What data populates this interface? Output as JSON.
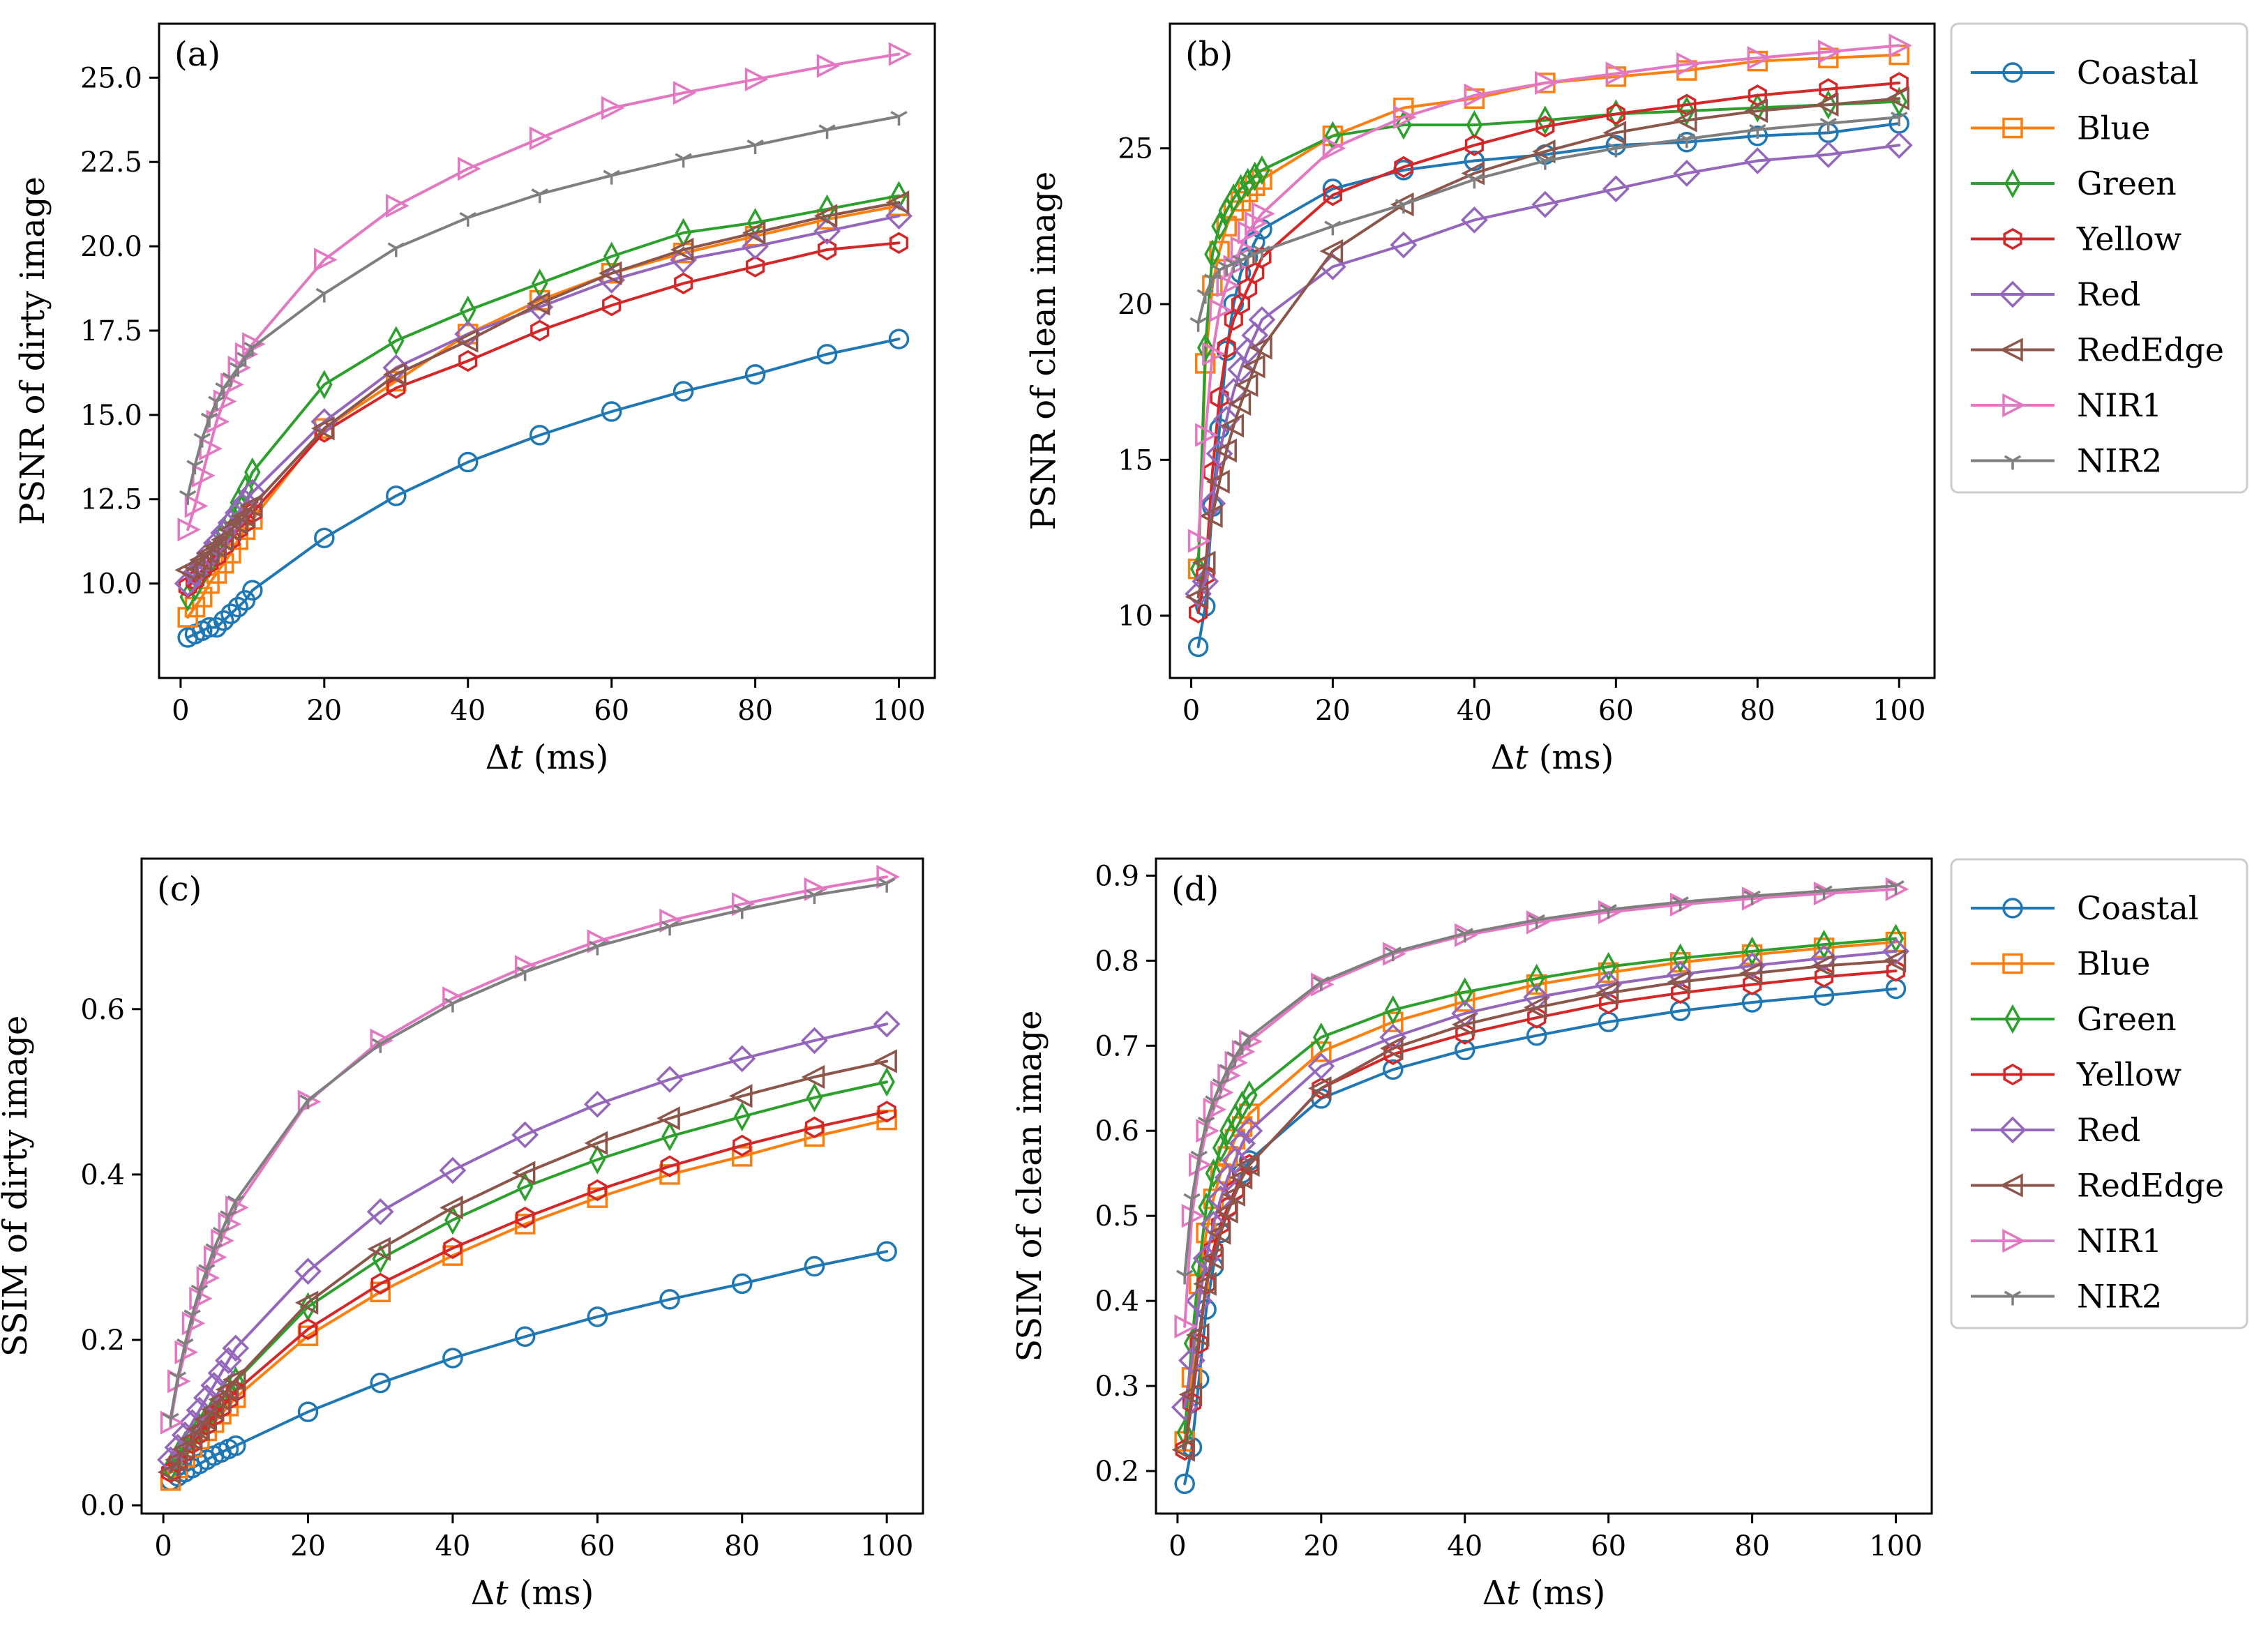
{
  "chart_data": [
    {
      "id": "a",
      "type": "line",
      "panel_label": "(a)",
      "xlabel": "Δt (ms)",
      "ylabel": "PSNR of dirty image",
      "xlim": [
        -3,
        105
      ],
      "ylim": [
        7.2,
        26.6
      ],
      "xticks": [
        0,
        20,
        40,
        60,
        80,
        100
      ],
      "xtick_labels": [
        "0",
        "20",
        "40",
        "60",
        "80",
        "100"
      ],
      "yticks": [
        10,
        12.5,
        15,
        17.5,
        20,
        22.5,
        25
      ],
      "ytick_labels": [
        "10.0",
        "12.5",
        "15.0",
        "17.5",
        "20.0",
        "22.5",
        "25.0"
      ],
      "x": [
        1,
        2,
        3,
        4,
        5,
        6,
        7,
        8,
        9,
        10,
        20,
        30,
        40,
        50,
        60,
        70,
        80,
        90,
        100
      ],
      "series": [
        {
          "name": "Coastal",
          "values": [
            8.4,
            8.5,
            8.6,
            8.7,
            8.7,
            8.9,
            9.1,
            9.3,
            9.5,
            9.8,
            11.35,
            12.6,
            13.6,
            14.4,
            15.1,
            15.7,
            16.2,
            16.8,
            17.25
          ]
        },
        {
          "name": "Blue",
          "values": [
            9.0,
            9.3,
            9.6,
            10.0,
            10.3,
            10.6,
            10.9,
            11.3,
            11.6,
            11.9,
            14.6,
            16.0,
            17.4,
            18.4,
            19.2,
            19.8,
            20.3,
            20.8,
            21.2
          ]
        },
        {
          "name": "Green",
          "values": [
            9.6,
            9.9,
            10.3,
            10.6,
            11.0,
            11.5,
            11.9,
            12.4,
            12.8,
            13.3,
            15.9,
            17.2,
            18.1,
            18.9,
            19.7,
            20.4,
            20.7,
            21.1,
            21.5
          ]
        },
        {
          "name": "Yellow",
          "values": [
            9.9,
            10.1,
            10.4,
            10.6,
            10.8,
            11.1,
            11.3,
            11.6,
            11.8,
            12.1,
            14.5,
            15.8,
            16.6,
            17.5,
            18.25,
            18.9,
            19.4,
            19.9,
            20.1
          ]
        },
        {
          "name": "Red",
          "values": [
            10.0,
            10.3,
            10.6,
            10.9,
            11.2,
            11.5,
            11.8,
            12.1,
            12.4,
            12.7,
            14.8,
            16.4,
            17.4,
            18.2,
            19.0,
            19.6,
            20.0,
            20.45,
            20.9
          ]
        },
        {
          "name": "RedEdge",
          "values": [
            10.4,
            10.5,
            10.7,
            10.9,
            11.1,
            11.3,
            11.6,
            11.8,
            12.0,
            12.3,
            14.6,
            16.2,
            17.2,
            18.3,
            19.2,
            19.9,
            20.4,
            20.9,
            21.3
          ]
        },
        {
          "name": "NIR1",
          "values": [
            11.6,
            12.3,
            13.2,
            14.0,
            14.8,
            15.4,
            15.9,
            16.4,
            16.8,
            17.1,
            19.6,
            21.2,
            22.3,
            23.2,
            24.1,
            24.55,
            24.95,
            25.35,
            25.7
          ]
        },
        {
          "name": "NIR2",
          "values": [
            12.6,
            13.5,
            14.3,
            14.9,
            15.4,
            15.8,
            16.1,
            16.4,
            16.7,
            17.0,
            18.6,
            19.95,
            20.85,
            21.55,
            22.1,
            22.6,
            23.0,
            23.45,
            23.85
          ]
        }
      ]
    },
    {
      "id": "b",
      "type": "line",
      "panel_label": "(b)",
      "xlabel": "Δt (ms)",
      "ylabel": "PSNR of clean image",
      "xlim": [
        -3,
        105
      ],
      "ylim": [
        8.0,
        29.0
      ],
      "xticks": [
        0,
        20,
        40,
        60,
        80,
        100
      ],
      "xtick_labels": [
        "0",
        "20",
        "40",
        "60",
        "80",
        "100"
      ],
      "yticks": [
        10,
        15,
        20,
        25
      ],
      "ytick_labels": [
        "10",
        "15",
        "20",
        "25"
      ],
      "x": [
        1,
        2,
        3,
        4,
        5,
        6,
        7,
        8,
        9,
        10,
        20,
        30,
        40,
        50,
        60,
        70,
        80,
        90,
        100
      ],
      "series": [
        {
          "name": "Coastal",
          "values": [
            9.0,
            10.3,
            13.5,
            16.0,
            18.5,
            20.0,
            21.0,
            21.5,
            22.0,
            22.4,
            23.7,
            24.3,
            24.6,
            24.8,
            25.1,
            25.2,
            25.4,
            25.5,
            25.8
          ]
        },
        {
          "name": "Blue",
          "values": [
            11.5,
            18.1,
            20.6,
            21.7,
            22.5,
            23.0,
            23.3,
            23.6,
            23.8,
            24.0,
            25.4,
            26.3,
            26.6,
            27.1,
            27.3,
            27.5,
            27.8,
            27.9,
            28.0
          ]
        },
        {
          "name": "Green",
          "values": [
            11.5,
            18.6,
            21.6,
            22.5,
            23.0,
            23.4,
            23.7,
            23.9,
            24.1,
            24.3,
            25.4,
            25.75,
            25.75,
            25.9,
            26.1,
            26.2,
            26.3,
            26.4,
            26.5
          ]
        },
        {
          "name": "Yellow",
          "values": [
            10.1,
            11.3,
            14.6,
            17.0,
            18.6,
            19.5,
            20.0,
            20.5,
            21.0,
            21.5,
            23.5,
            24.4,
            25.1,
            25.7,
            26.1,
            26.4,
            26.7,
            26.9,
            27.1
          ]
        },
        {
          "name": "Red",
          "values": [
            10.7,
            11.1,
            13.6,
            15.2,
            16.3,
            17.2,
            17.9,
            18.5,
            19.0,
            19.5,
            21.2,
            21.9,
            22.7,
            23.2,
            23.7,
            24.2,
            24.6,
            24.8,
            25.1
          ]
        },
        {
          "name": "RedEdge",
          "values": [
            10.6,
            11.7,
            13.2,
            14.3,
            15.3,
            16.1,
            16.8,
            17.4,
            18.0,
            18.6,
            21.7,
            23.2,
            24.2,
            24.9,
            25.5,
            25.9,
            26.2,
            26.4,
            26.6
          ]
        },
        {
          "name": "NIR1",
          "values": [
            12.4,
            15.8,
            18.4,
            19.8,
            20.6,
            21.2,
            21.8,
            22.3,
            22.6,
            22.9,
            25.0,
            26.0,
            26.7,
            27.1,
            27.4,
            27.7,
            27.9,
            28.1,
            28.3
          ]
        },
        {
          "name": "NIR2",
          "values": [
            19.4,
            20.3,
            20.8,
            21.1,
            21.2,
            21.3,
            21.4,
            21.5,
            21.6,
            21.7,
            22.5,
            23.2,
            24.0,
            24.6,
            25.0,
            25.3,
            25.6,
            25.8,
            26.0
          ]
        }
      ]
    },
    {
      "id": "c",
      "type": "line",
      "panel_label": "(c)",
      "xlabel": "Δt (ms)",
      "ylabel": "SSIM of dirty image",
      "xlim": [
        -3,
        105
      ],
      "ylim": [
        -0.01,
        0.782
      ],
      "xticks": [
        0,
        20,
        40,
        60,
        80,
        100
      ],
      "xtick_labels": [
        "0",
        "20",
        "40",
        "60",
        "80",
        "100"
      ],
      "yticks": [
        0.0,
        0.2,
        0.4,
        0.6
      ],
      "ytick_labels": [
        "0.0",
        "0.2",
        "0.4",
        "0.6"
      ],
      "x": [
        1,
        2,
        3,
        4,
        5,
        6,
        7,
        8,
        9,
        10,
        20,
        30,
        40,
        50,
        60,
        70,
        80,
        90,
        100
      ],
      "series": [
        {
          "name": "Coastal",
          "values": [
            0.03,
            0.035,
            0.04,
            0.045,
            0.05,
            0.055,
            0.06,
            0.064,
            0.068,
            0.072,
            0.113,
            0.148,
            0.178,
            0.204,
            0.228,
            0.249,
            0.268,
            0.289,
            0.307
          ]
        },
        {
          "name": "Blue",
          "values": [
            0.03,
            0.045,
            0.058,
            0.07,
            0.08,
            0.09,
            0.1,
            0.11,
            0.12,
            0.13,
            0.205,
            0.258,
            0.302,
            0.34,
            0.372,
            0.4,
            0.422,
            0.446,
            0.466
          ]
        },
        {
          "name": "Green",
          "values": [
            0.045,
            0.06,
            0.072,
            0.083,
            0.094,
            0.105,
            0.116,
            0.128,
            0.14,
            0.15,
            0.24,
            0.298,
            0.345,
            0.385,
            0.418,
            0.446,
            0.47,
            0.493,
            0.512
          ]
        },
        {
          "name": "Yellow",
          "values": [
            0.04,
            0.052,
            0.064,
            0.075,
            0.086,
            0.097,
            0.108,
            0.118,
            0.128,
            0.138,
            0.213,
            0.268,
            0.311,
            0.348,
            0.381,
            0.41,
            0.435,
            0.457,
            0.476
          ]
        },
        {
          "name": "Red",
          "values": [
            0.055,
            0.07,
            0.085,
            0.1,
            0.115,
            0.13,
            0.145,
            0.16,
            0.175,
            0.19,
            0.283,
            0.355,
            0.405,
            0.448,
            0.485,
            0.515,
            0.54,
            0.562,
            0.582
          ]
        },
        {
          "name": "RedEdge",
          "values": [
            0.04,
            0.055,
            0.068,
            0.08,
            0.092,
            0.104,
            0.116,
            0.128,
            0.14,
            0.152,
            0.245,
            0.31,
            0.36,
            0.402,
            0.438,
            0.468,
            0.495,
            0.518,
            0.537
          ]
        },
        {
          "name": "NIR1",
          "values": [
            0.1,
            0.15,
            0.185,
            0.22,
            0.25,
            0.275,
            0.3,
            0.32,
            0.34,
            0.36,
            0.488,
            0.562,
            0.613,
            0.651,
            0.682,
            0.707,
            0.727,
            0.745,
            0.76
          ]
        },
        {
          "name": "NIR2",
          "values": [
            0.105,
            0.155,
            0.195,
            0.23,
            0.26,
            0.285,
            0.31,
            0.33,
            0.35,
            0.368,
            0.49,
            0.558,
            0.607,
            0.645,
            0.676,
            0.7,
            0.72,
            0.738,
            0.752
          ]
        }
      ]
    },
    {
      "id": "d",
      "type": "line",
      "panel_label": "(d)",
      "xlabel": "Δt (ms)",
      "ylabel": "SSIM of clean image",
      "xlim": [
        -3,
        105
      ],
      "ylim": [
        0.15,
        0.92
      ],
      "xticks": [
        0,
        20,
        40,
        60,
        80,
        100
      ],
      "xtick_labels": [
        "0",
        "20",
        "40",
        "60",
        "80",
        "100"
      ],
      "yticks": [
        0.2,
        0.3,
        0.4,
        0.5,
        0.6,
        0.7,
        0.8,
        0.9
      ],
      "ytick_labels": [
        "0.2",
        "0.3",
        "0.4",
        "0.5",
        "0.6",
        "0.7",
        "0.8",
        "0.9"
      ],
      "x": [
        1,
        2,
        3,
        4,
        5,
        6,
        7,
        8,
        9,
        10,
        20,
        30,
        40,
        50,
        60,
        70,
        80,
        90,
        100
      ],
      "series": [
        {
          "name": "Coastal",
          "values": [
            0.185,
            0.228,
            0.308,
            0.39,
            0.44,
            0.48,
            0.51,
            0.53,
            0.55,
            0.565,
            0.638,
            0.672,
            0.695,
            0.712,
            0.728,
            0.741,
            0.751,
            0.759,
            0.767
          ]
        },
        {
          "name": "Blue",
          "values": [
            0.235,
            0.31,
            0.42,
            0.48,
            0.52,
            0.55,
            0.57,
            0.59,
            0.605,
            0.62,
            0.693,
            0.728,
            0.752,
            0.772,
            0.786,
            0.798,
            0.807,
            0.815,
            0.822
          ]
        },
        {
          "name": "Green",
          "values": [
            0.245,
            0.35,
            0.44,
            0.51,
            0.55,
            0.58,
            0.6,
            0.615,
            0.63,
            0.642,
            0.71,
            0.742,
            0.763,
            0.779,
            0.793,
            0.803,
            0.811,
            0.819,
            0.826
          ]
        },
        {
          "name": "Yellow",
          "values": [
            0.225,
            0.28,
            0.35,
            0.42,
            0.46,
            0.49,
            0.51,
            0.53,
            0.545,
            0.56,
            0.65,
            0.69,
            0.714,
            0.733,
            0.75,
            0.762,
            0.772,
            0.781,
            0.788
          ]
        },
        {
          "name": "Red",
          "values": [
            0.275,
            0.33,
            0.4,
            0.45,
            0.49,
            0.52,
            0.545,
            0.565,
            0.585,
            0.6,
            0.676,
            0.71,
            0.738,
            0.757,
            0.772,
            0.784,
            0.794,
            0.803,
            0.811
          ]
        },
        {
          "name": "RedEdge",
          "values": [
            0.225,
            0.29,
            0.36,
            0.42,
            0.45,
            0.48,
            0.505,
            0.525,
            0.545,
            0.56,
            0.65,
            0.697,
            0.725,
            0.745,
            0.762,
            0.775,
            0.785,
            0.794,
            0.8
          ]
        },
        {
          "name": "NIR1",
          "values": [
            0.37,
            0.5,
            0.56,
            0.6,
            0.625,
            0.645,
            0.665,
            0.68,
            0.693,
            0.705,
            0.772,
            0.808,
            0.83,
            0.845,
            0.857,
            0.866,
            0.873,
            0.879,
            0.884
          ]
        },
        {
          "name": "NIR2",
          "values": [
            0.43,
            0.52,
            0.57,
            0.61,
            0.635,
            0.655,
            0.672,
            0.687,
            0.7,
            0.71,
            0.775,
            0.81,
            0.832,
            0.848,
            0.86,
            0.869,
            0.876,
            0.882,
            0.888
          ]
        }
      ]
    }
  ],
  "legend": [
    {
      "name": "Coastal",
      "color": "#1f77b4",
      "marker": "circle"
    },
    {
      "name": "Blue",
      "color": "#ff7f0e",
      "marker": "square"
    },
    {
      "name": "Green",
      "color": "#2ca02c",
      "marker": "thin-diamond"
    },
    {
      "name": "Yellow",
      "color": "#d62728",
      "marker": "hexagon"
    },
    {
      "name": "Red",
      "color": "#9467bd",
      "marker": "diamond"
    },
    {
      "name": "RedEdge",
      "color": "#8c564b",
      "marker": "triangle-left"
    },
    {
      "name": "NIR1",
      "color": "#e377c2",
      "marker": "triangle-right"
    },
    {
      "name": "NIR2",
      "color": "#7f7f7f",
      "marker": "tri-down"
    }
  ]
}
